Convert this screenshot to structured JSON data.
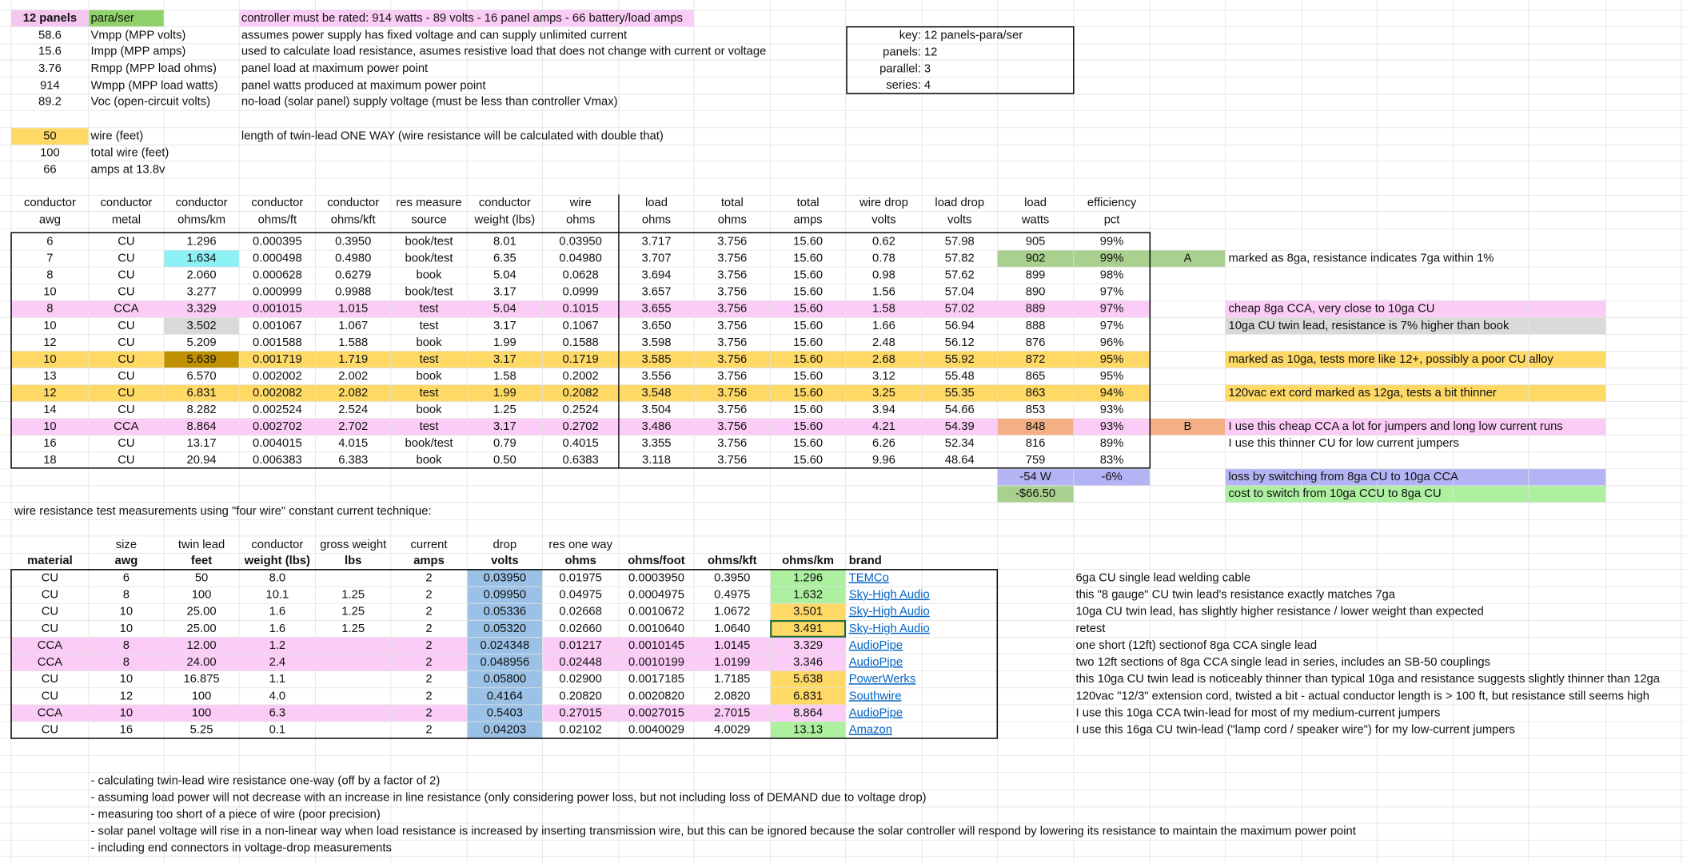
{
  "top": {
    "rows": [
      [
        "12 panels",
        "para/ser",
        "controller must be rated: 914 watts - 89 volts - 16 panel amps - 66 battery/load amps"
      ],
      [
        "58.6",
        "Vmpp (MPP volts)",
        "assumes power supply has fixed voltage and can supply unlimited current"
      ],
      [
        "15.6",
        "Impp (MPP amps)",
        "used to calculate load resistance, asumes resistive load that does not change with current or voltage"
      ],
      [
        "3.76",
        "Rmpp (MPP load ohms)",
        "panel load at maximum power point"
      ],
      [
        "914",
        "Wmpp (MPP load watts)",
        "panel watts produced at maximum power point"
      ],
      [
        "89.2",
        "Voc (open-circuit volts)",
        "no-load (solar panel) supply voltage (must be less than controller Vmax)"
      ]
    ]
  },
  "wire": {
    "rows": [
      [
        "50",
        "wire (feet)",
        "length of twin-lead ONE WAY (wire resistance will be calculated with double that)"
      ],
      [
        "100",
        "total wire (feet)"
      ],
      [
        "66",
        "amps at 13.8v"
      ]
    ]
  },
  "key": [
    [
      "key:",
      "12 panels-para/ser"
    ],
    [
      "panels:",
      "12"
    ],
    [
      "parallel:",
      "3"
    ],
    [
      "series:",
      "4"
    ]
  ],
  "table1": {
    "header": [
      [
        "conductor",
        "awg"
      ],
      [
        "conductor",
        "metal"
      ],
      [
        "conductor",
        "ohms/km"
      ],
      [
        "conductor",
        "ohms/ft"
      ],
      [
        "conductor",
        "ohms/kft"
      ],
      [
        "res measure",
        "source"
      ],
      [
        "conductor",
        "weight (lbs)"
      ],
      [
        "wire",
        "ohms"
      ],
      [
        "load",
        "ohms"
      ],
      [
        "total",
        "ohms"
      ],
      [
        "total",
        "amps"
      ],
      [
        "wire drop",
        "volts"
      ],
      [
        "load drop",
        "volts"
      ],
      [
        "load",
        "watts"
      ],
      [
        "efficiency",
        "pct"
      ]
    ],
    "rows": [
      [
        "6",
        "CU",
        "1.296",
        "0.000395",
        "0.3950",
        "book/test",
        "8.01",
        "0.03950",
        "3.717",
        "3.756",
        "15.60",
        "0.62",
        "57.98",
        "905",
        "99%"
      ],
      [
        "7",
        "CU",
        "1.634",
        "0.000498",
        "0.4980",
        "book/test",
        "6.35",
        "0.04980",
        "3.707",
        "3.756",
        "15.60",
        "0.78",
        "57.82",
        "902",
        "99%"
      ],
      [
        "8",
        "CU",
        "2.060",
        "0.000628",
        "0.6279",
        "book",
        "5.04",
        "0.0628",
        "3.694",
        "3.756",
        "15.60",
        "0.98",
        "57.62",
        "899",
        "98%"
      ],
      [
        "10",
        "CU",
        "3.277",
        "0.000999",
        "0.9988",
        "book/test",
        "3.17",
        "0.0999",
        "3.657",
        "3.756",
        "15.60",
        "1.56",
        "57.04",
        "890",
        "97%"
      ],
      [
        "8",
        "CCA",
        "3.329",
        "0.001015",
        "1.015",
        "test",
        "5.04",
        "0.1015",
        "3.655",
        "3.756",
        "15.60",
        "1.58",
        "57.02",
        "889",
        "97%"
      ],
      [
        "10",
        "CU",
        "3.502",
        "0.001067",
        "1.067",
        "test",
        "3.17",
        "0.1067",
        "3.650",
        "3.756",
        "15.60",
        "1.66",
        "56.94",
        "888",
        "97%"
      ],
      [
        "12",
        "CU",
        "5.209",
        "0.001588",
        "1.588",
        "book",
        "1.99",
        "0.1588",
        "3.598",
        "3.756",
        "15.60",
        "2.48",
        "56.12",
        "876",
        "96%"
      ],
      [
        "10",
        "CU",
        "5.639",
        "0.001719",
        "1.719",
        "test",
        "3.17",
        "0.1719",
        "3.585",
        "3.756",
        "15.60",
        "2.68",
        "55.92",
        "872",
        "95%"
      ],
      [
        "13",
        "CU",
        "6.570",
        "0.002002",
        "2.002",
        "book",
        "1.58",
        "0.2002",
        "3.556",
        "3.756",
        "15.60",
        "3.12",
        "55.48",
        "865",
        "95%"
      ],
      [
        "12",
        "CU",
        "6.831",
        "0.002082",
        "2.082",
        "test",
        "1.99",
        "0.2082",
        "3.548",
        "3.756",
        "15.60",
        "3.25",
        "55.35",
        "863",
        "94%"
      ],
      [
        "14",
        "CU",
        "8.282",
        "0.002524",
        "2.524",
        "book",
        "1.25",
        "0.2524",
        "3.504",
        "3.756",
        "15.60",
        "3.94",
        "54.66",
        "853",
        "93%"
      ],
      [
        "10",
        "CCA",
        "8.864",
        "0.002702",
        "2.702",
        "test",
        "3.17",
        "0.2702",
        "3.486",
        "3.756",
        "15.60",
        "4.21",
        "54.39",
        "848",
        "93%"
      ],
      [
        "16",
        "CU",
        "13.17",
        "0.004015",
        "4.015",
        "book/test",
        "0.79",
        "0.4015",
        "3.355",
        "3.756",
        "15.60",
        "6.26",
        "52.34",
        "816",
        "89%"
      ],
      [
        "18",
        "CU",
        "20.94",
        "0.006383",
        "6.383",
        "book",
        "0.50",
        "0.6383",
        "3.118",
        "3.756",
        "15.60",
        "9.96",
        "48.64",
        "759",
        "83%"
      ]
    ],
    "tags": [
      null,
      "A",
      null,
      null,
      null,
      null,
      null,
      null,
      null,
      null,
      null,
      "B",
      null,
      null
    ],
    "notes": [
      null,
      "marked as 8ga, resistance indicates 7ga within 1%",
      null,
      null,
      "cheap 8ga CCA, very close to 10ga CU",
      "10ga CU twin lead, resistance is 7% higher than book",
      null,
      "marked as 10ga, tests more like 12+, possibly a poor CU alloy",
      null,
      "120vac ext cord marked as 12ga, tests a bit thinner",
      null,
      "I use this cheap CCA a lot for jumpers and long low current runs",
      "I use this thinner CU for low current jumpers",
      null
    ],
    "summary": [
      {
        "watts": "-54 W",
        "pct": "-6%",
        "note": "loss by switching from 8ga CU to 10ga CCA"
      },
      {
        "watts": "-$66.50",
        "note": "cost to switch from 10ga CCU to 8ga CU"
      }
    ]
  },
  "table2": {
    "title": "wire resistance test measurements using \"four wire\" constant current technique:",
    "header_top": [
      null,
      "size",
      "twin lead",
      "conductor",
      "gross weight",
      "current",
      "drop",
      "res one way",
      null,
      null,
      null,
      null
    ],
    "header_bottom": [
      "material",
      "awg",
      "feet",
      "weight (lbs)",
      "lbs",
      "amps",
      "volts",
      "ohms",
      "ohms/foot",
      "ohms/kft",
      "ohms/km",
      "brand"
    ],
    "rows": [
      [
        "CU",
        "6",
        "50",
        "8.0",
        null,
        "2",
        "0.03950",
        "0.01975",
        "0.0003950",
        "0.3950",
        "1.296",
        "TEMCo"
      ],
      [
        "CU",
        "8",
        "100",
        "10.1",
        "1.25",
        "2",
        "0.09950",
        "0.04975",
        "0.0004975",
        "0.4975",
        "1.632",
        "Sky-High Audio"
      ],
      [
        "CU",
        "10",
        "25.00",
        "1.6",
        "1.25",
        "2",
        "0.05336",
        "0.02668",
        "0.0010672",
        "1.0672",
        "3.501",
        "Sky-High Audio"
      ],
      [
        "CU",
        "10",
        "25.00",
        "1.6",
        "1.25",
        "2",
        "0.05320",
        "0.02660",
        "0.0010640",
        "1.0640",
        "3.491",
        "Sky-High Audio"
      ],
      [
        "CCA",
        "8",
        "12.00",
        "1.2",
        null,
        "2",
        "0.024348",
        "0.01217",
        "0.0010145",
        "1.0145",
        "3.329",
        "AudioPipe"
      ],
      [
        "CCA",
        "8",
        "24.00",
        "2.4",
        null,
        "2",
        "0.048956",
        "0.02448",
        "0.0010199",
        "1.0199",
        "3.346",
        "AudioPipe"
      ],
      [
        "CU",
        "10",
        "16.875",
        "1.1",
        null,
        "2",
        "0.05800",
        "0.02900",
        "0.0017185",
        "1.7185",
        "5.638",
        "PowerWerks"
      ],
      [
        "CU",
        "12",
        "100",
        "4.0",
        null,
        "2",
        "0.4164",
        "0.20820",
        "0.0020820",
        "2.0820",
        "6.831",
        "Southwire"
      ],
      [
        "CCA",
        "10",
        "100",
        "6.3",
        null,
        "2",
        "0.5403",
        "0.27015",
        "0.0027015",
        "2.7015",
        "8.864",
        "AudioPipe"
      ],
      [
        "CU",
        "16",
        "5.25",
        "0.1",
        null,
        "2",
        "0.04203",
        "0.02102",
        "0.0040029",
        "4.0029",
        "13.13",
        "Amazon"
      ]
    ],
    "notes": [
      "6ga CU single lead welding cable",
      "this \"8 gauge\" CU twin lead's resistance exactly matches 7ga",
      "10ga CU twin lead, has slightly higher resistance / lower weight than expected",
      "retest",
      "one short (12ft) sectionof 8ga CCA single lead",
      "two 12ft sections of  8ga CCA single lead in series, includes an SB-50 couplings",
      "this 10ga CU twin lead is noticeably thinner than typical 10ga and resistance suggests slightly thinner than 12ga",
      "120vac \"12/3\" extension cord, twisted a bit - actual conductor length is > 100 ft, but resistance still seems high",
      "I use this 10ga CCA twin-lead for most of my medium-current jumpers",
      "I use this 16ga CU twin-lead (\"lamp cord / speaker wire\") for my low-current jumpers"
    ]
  },
  "footnotes": [
    "- calculating twin-lead wire resistance one-way (off by a factor of 2)",
    "- assuming load power will not decrease with an increase in line resistance (only considering power loss, but not including loss of DEMAND due to voltage drop)",
    "- measuring too short of a piece of wire (poor precision)",
    "- solar panel voltage will rise in a non-linear way when load resistance is increased by inserting transmission wire, but this can be ignored because the solar controller will respond by lowering its resistance to maintain the maximum power point",
    "- including end connectors in voltage-drop measurements"
  ]
}
